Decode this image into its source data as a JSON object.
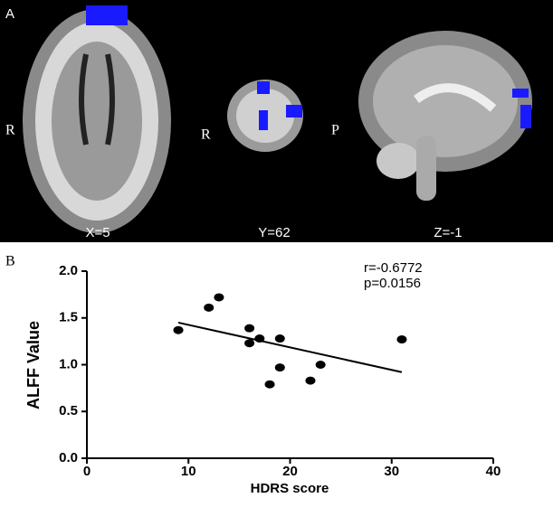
{
  "panel_a": {
    "label": "A",
    "views": [
      {
        "orientation": "R",
        "caption": "X=5"
      },
      {
        "orientation": "R",
        "caption": "Y=62"
      },
      {
        "orientation": "P",
        "caption": "Z=-1"
      }
    ]
  },
  "chart_data": {
    "type": "scatter",
    "panel_label": "B",
    "x_label": "HDRS score",
    "y_label": "ALFF Value",
    "annotations": [
      "r=-0.6772",
      "p=0.0156"
    ],
    "x": [
      9,
      12,
      13,
      16,
      16,
      17,
      19,
      19,
      18,
      23,
      22,
      31
    ],
    "values": [
      1.37,
      1.61,
      1.72,
      1.39,
      1.23,
      1.28,
      1.28,
      0.97,
      0.79,
      1.0,
      0.83,
      1.27
    ],
    "color": "#000000",
    "trend_line": {
      "x": [
        9,
        31
      ],
      "y": [
        1.45,
        0.92
      ]
    },
    "xlim": [
      0,
      40
    ],
    "xticks": [
      0,
      10,
      20,
      30,
      40
    ],
    "ylim": [
      0,
      2
    ],
    "yticks": [
      {
        "value": 0,
        "label": "0.0"
      },
      0.5,
      {
        "value": 1,
        "label": "1.0"
      },
      1.5,
      {
        "value": 2,
        "label": "2.0"
      }
    ],
    "grid": false
  }
}
